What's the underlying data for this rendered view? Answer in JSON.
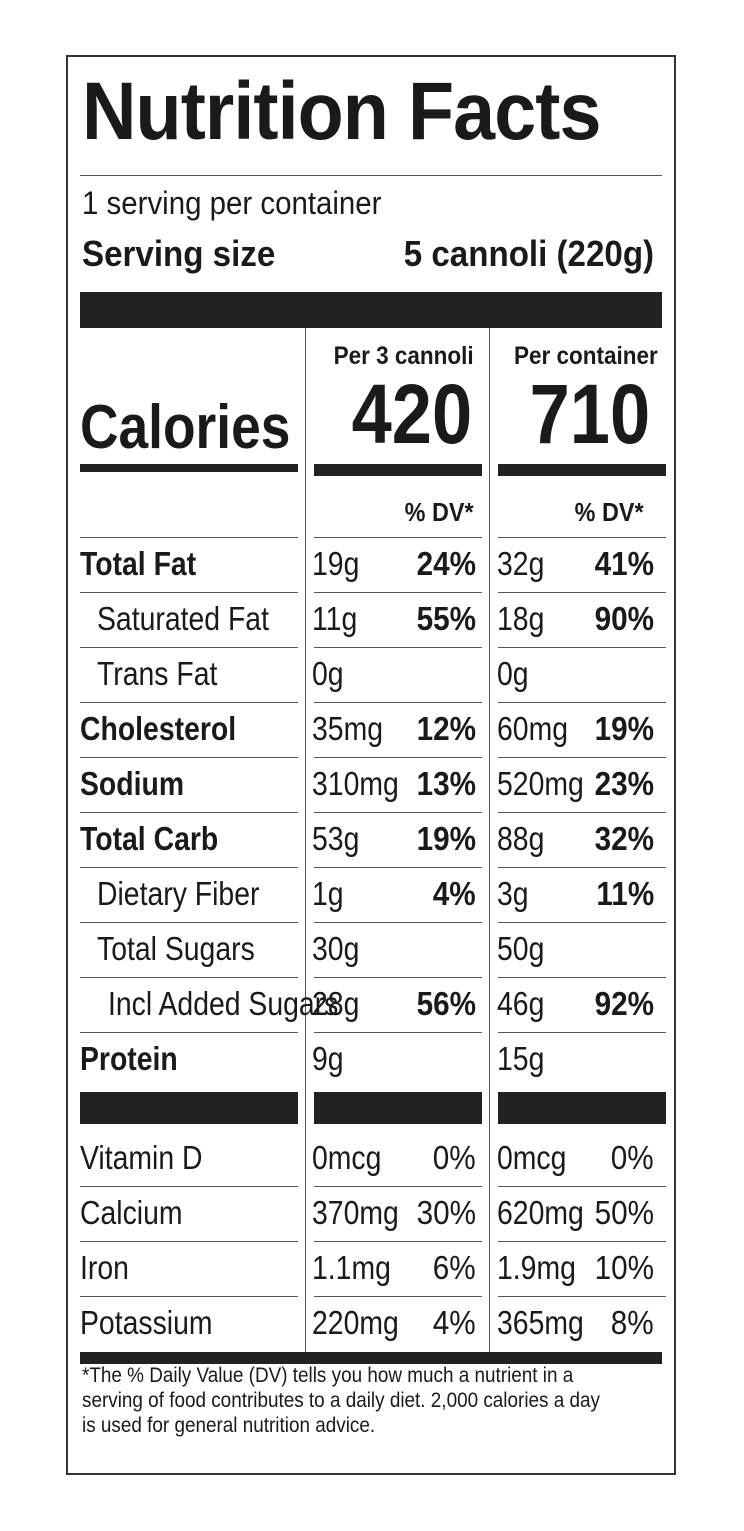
{
  "label": {
    "title": "Nutrition Facts",
    "servings": "1 serving per container",
    "serving_size_label": "Serving size",
    "serving_size_value": "5 cannoli (220g)",
    "columns": [
      "Per 3 cannoli",
      "Per container"
    ],
    "calories_label": "Calories",
    "calories": [
      "420",
      "710"
    ],
    "dv_header": "% DV*",
    "nutrients": [
      {
        "name": "Total Fat",
        "c1_amount": "19g",
        "c1_dv": "24%",
        "c2_amount": "32g",
        "c2_dv": "41%"
      },
      {
        "name": "Saturated Fat",
        "c1_amount": "11g",
        "c1_dv": "55%",
        "c2_amount": "18g",
        "c2_dv": "90%"
      },
      {
        "name": "Trans Fat",
        "c1_amount": "0g",
        "c1_dv": "",
        "c2_amount": "0g",
        "c2_dv": ""
      },
      {
        "name": "Cholesterol",
        "c1_amount": "35mg",
        "c1_dv": "12%",
        "c2_amount": "60mg",
        "c2_dv": "19%"
      },
      {
        "name": "Sodium",
        "c1_amount": "310mg",
        "c1_dv": "13%",
        "c2_amount": "520mg",
        "c2_dv": "23%"
      },
      {
        "name": "Total Carb",
        "c1_amount": "53g",
        "c1_dv": "19%",
        "c2_amount": "88g",
        "c2_dv": "32%"
      },
      {
        "name": "Dietary Fiber",
        "c1_amount": "1g",
        "c1_dv": "4%",
        "c2_amount": "3g",
        "c2_dv": "11%"
      },
      {
        "name": "Total Sugars",
        "c1_amount": "30g",
        "c1_dv": "",
        "c2_amount": "50g",
        "c2_dv": ""
      },
      {
        "name": "Incl Added Sugars",
        "c1_amount": "28g",
        "c1_dv": "56%",
        "c2_amount": "46g",
        "c2_dv": "92%"
      },
      {
        "name": "Protein",
        "c1_amount": "9g",
        "c1_dv": "",
        "c2_amount": "15g",
        "c2_dv": ""
      }
    ],
    "vitamins": [
      {
        "name": "Vitamin D",
        "c1_amount": "0mcg",
        "c1_dv": "0%",
        "c2_amount": "0mcg",
        "c2_dv": "0%"
      },
      {
        "name": "Calcium",
        "c1_amount": "370mg",
        "c1_dv": "30%",
        "c2_amount": "620mg",
        "c2_dv": "50%"
      },
      {
        "name": "Iron",
        "c1_amount": "1.1mg",
        "c1_dv": "6%",
        "c2_amount": "1.9mg",
        "c2_dv": "10%"
      },
      {
        "name": "Potassium",
        "c1_amount": "220mg",
        "c1_dv": "4%",
        "c2_amount": "365mg",
        "c2_dv": "8%"
      }
    ],
    "footnote": "*The % Daily Value (DV) tells you how much a nutrient in a serving of food contributes to a daily diet. 2,000 calories a day is used for general nutrition advice."
  }
}
